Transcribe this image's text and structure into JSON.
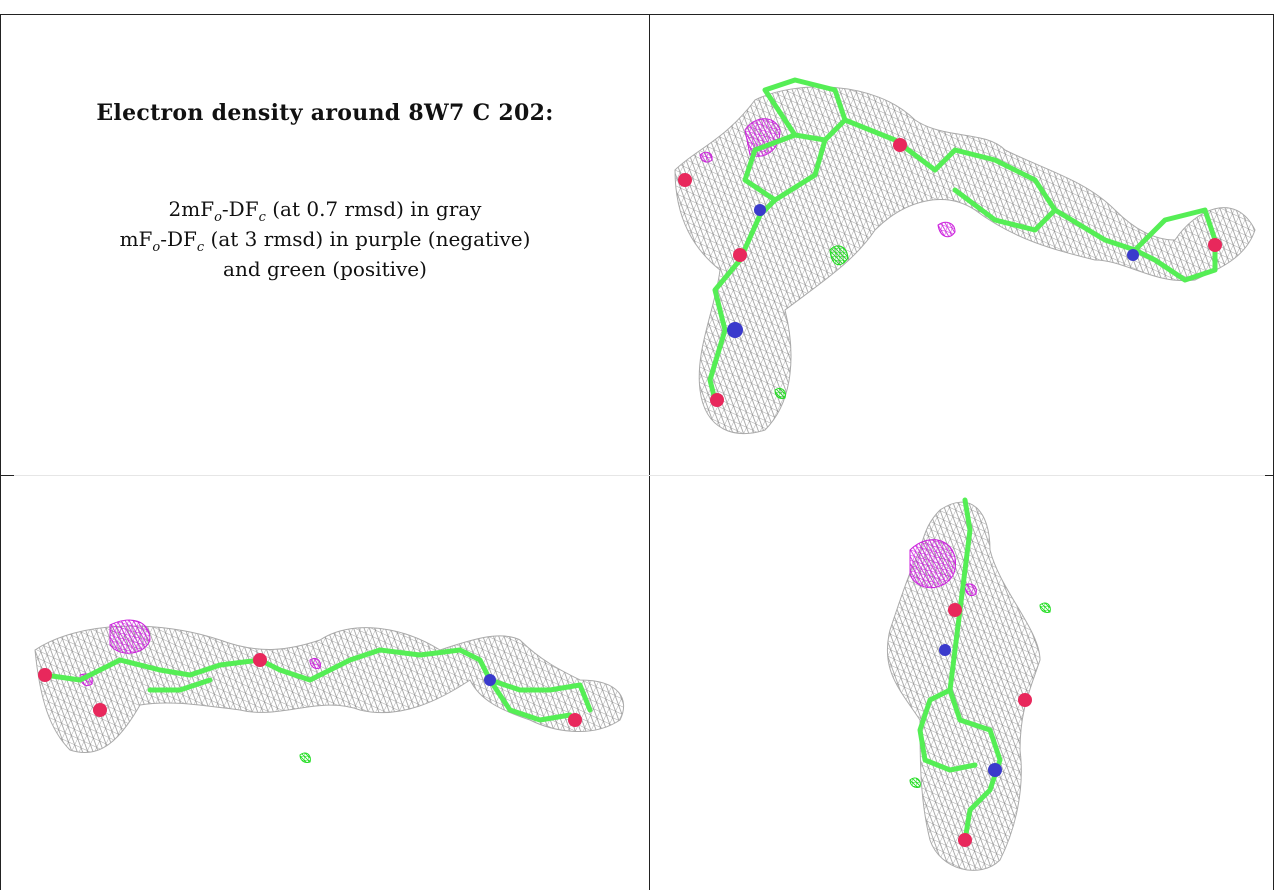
{
  "caption": {
    "title": "Electron density around 8W7 C 202:",
    "lines": [
      {
        "pre": "2mF",
        "sub1": "o",
        "mid": "-DF",
        "sub2": "c",
        "post": " (at 0.7 rmsd) in gray"
      },
      {
        "pre": "mF",
        "sub1": "o",
        "mid": "-DF",
        "sub2": "c",
        "post": " (at 3 rmsd) in purple (negative)"
      },
      {
        "pre": "",
        "sub1": "",
        "mid": "",
        "sub2": "",
        "post": "and green (positive)"
      }
    ]
  },
  "colors": {
    "mesh_2fo": "#8c8c8c",
    "mesh_negative": "#cc22dd",
    "mesh_positive": "#22dd22",
    "bonds": "#55ee55",
    "oxygen": "#e8285c",
    "nitrogen": "#3a3acc"
  },
  "panels": [
    {
      "id": "top-right",
      "view": "view-1"
    },
    {
      "id": "bottom-left",
      "view": "view-2"
    },
    {
      "id": "bottom-right",
      "view": "view-3"
    }
  ]
}
